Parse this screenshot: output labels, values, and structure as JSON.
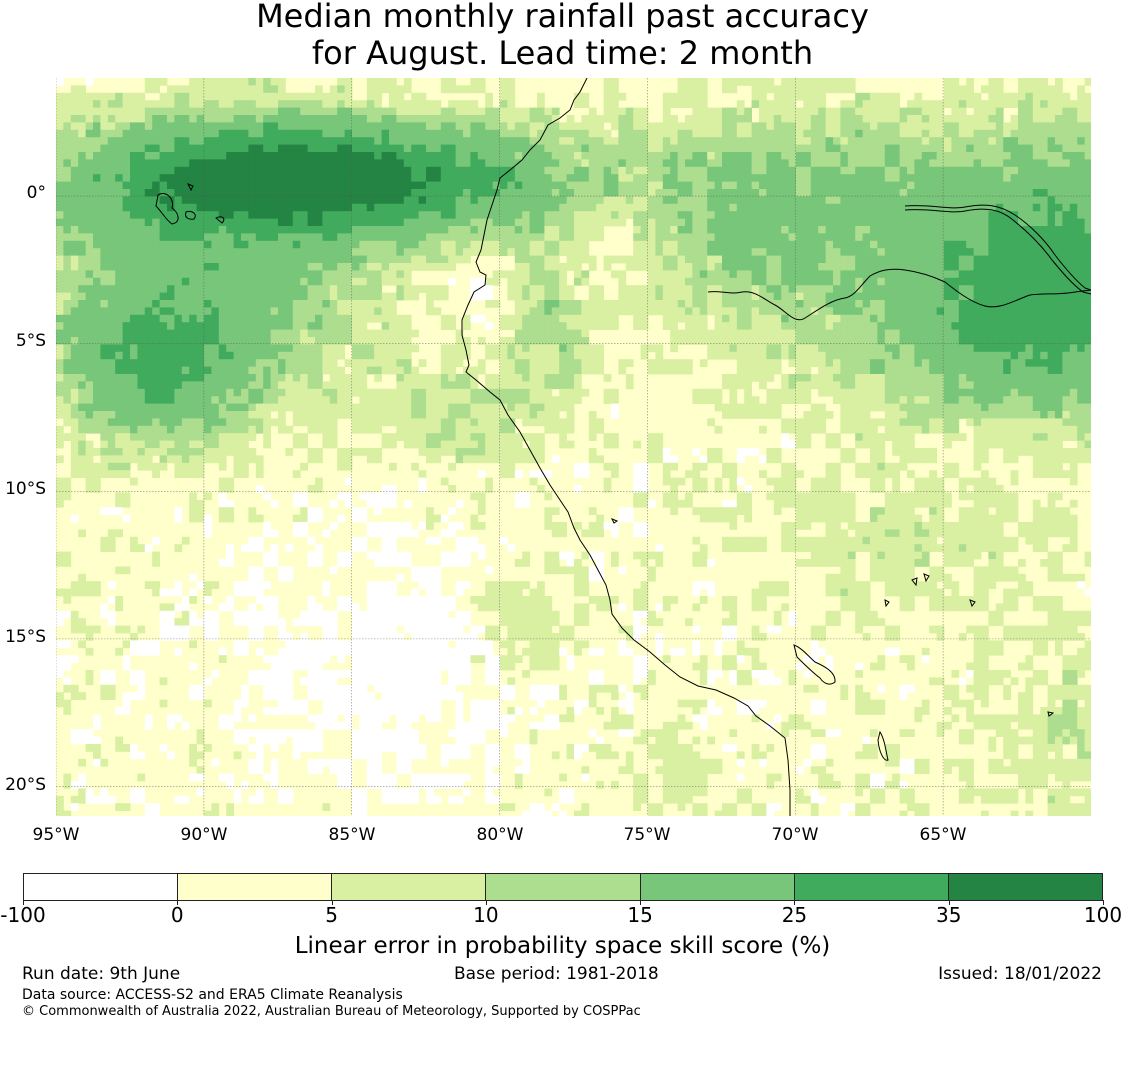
{
  "title": {
    "line1": "Median monthly rainfall past accuracy",
    "line2": "for August. Lead time: 2 month"
  },
  "map": {
    "lat_labels": [
      "0°",
      "5°S",
      "10°S",
      "15°S",
      "20°S"
    ],
    "lon_labels": [
      "95°W",
      "90°W",
      "85°W",
      "80°W",
      "75°W",
      "70°W",
      "65°W"
    ],
    "extent": {
      "lon_min": -95,
      "lon_max": -60,
      "lat_min": -21,
      "lat_max": 4
    }
  },
  "colorbar": {
    "ticks": [
      "-100",
      "0",
      "5",
      "10",
      "15",
      "25",
      "35",
      "100"
    ],
    "colors": [
      "#ffffff",
      "#ffffcc",
      "#d9f0a3",
      "#addd8e",
      "#78c679",
      "#41ab5d",
      "#238443"
    ],
    "label": "Linear error in probability space skill score (%)"
  },
  "footer": {
    "run_date": "Run date: 9th June",
    "base_period": "Base period: 1981-2018",
    "issued": "Issued: 18/01/2022",
    "data_source": "Data source: ACCESS-S2 and ERA5 Climate Reanalysis",
    "copyright": "© Commonwealth of Australia 2022, Australian Bureau of Meteorology, Supported by COSPPac"
  }
}
